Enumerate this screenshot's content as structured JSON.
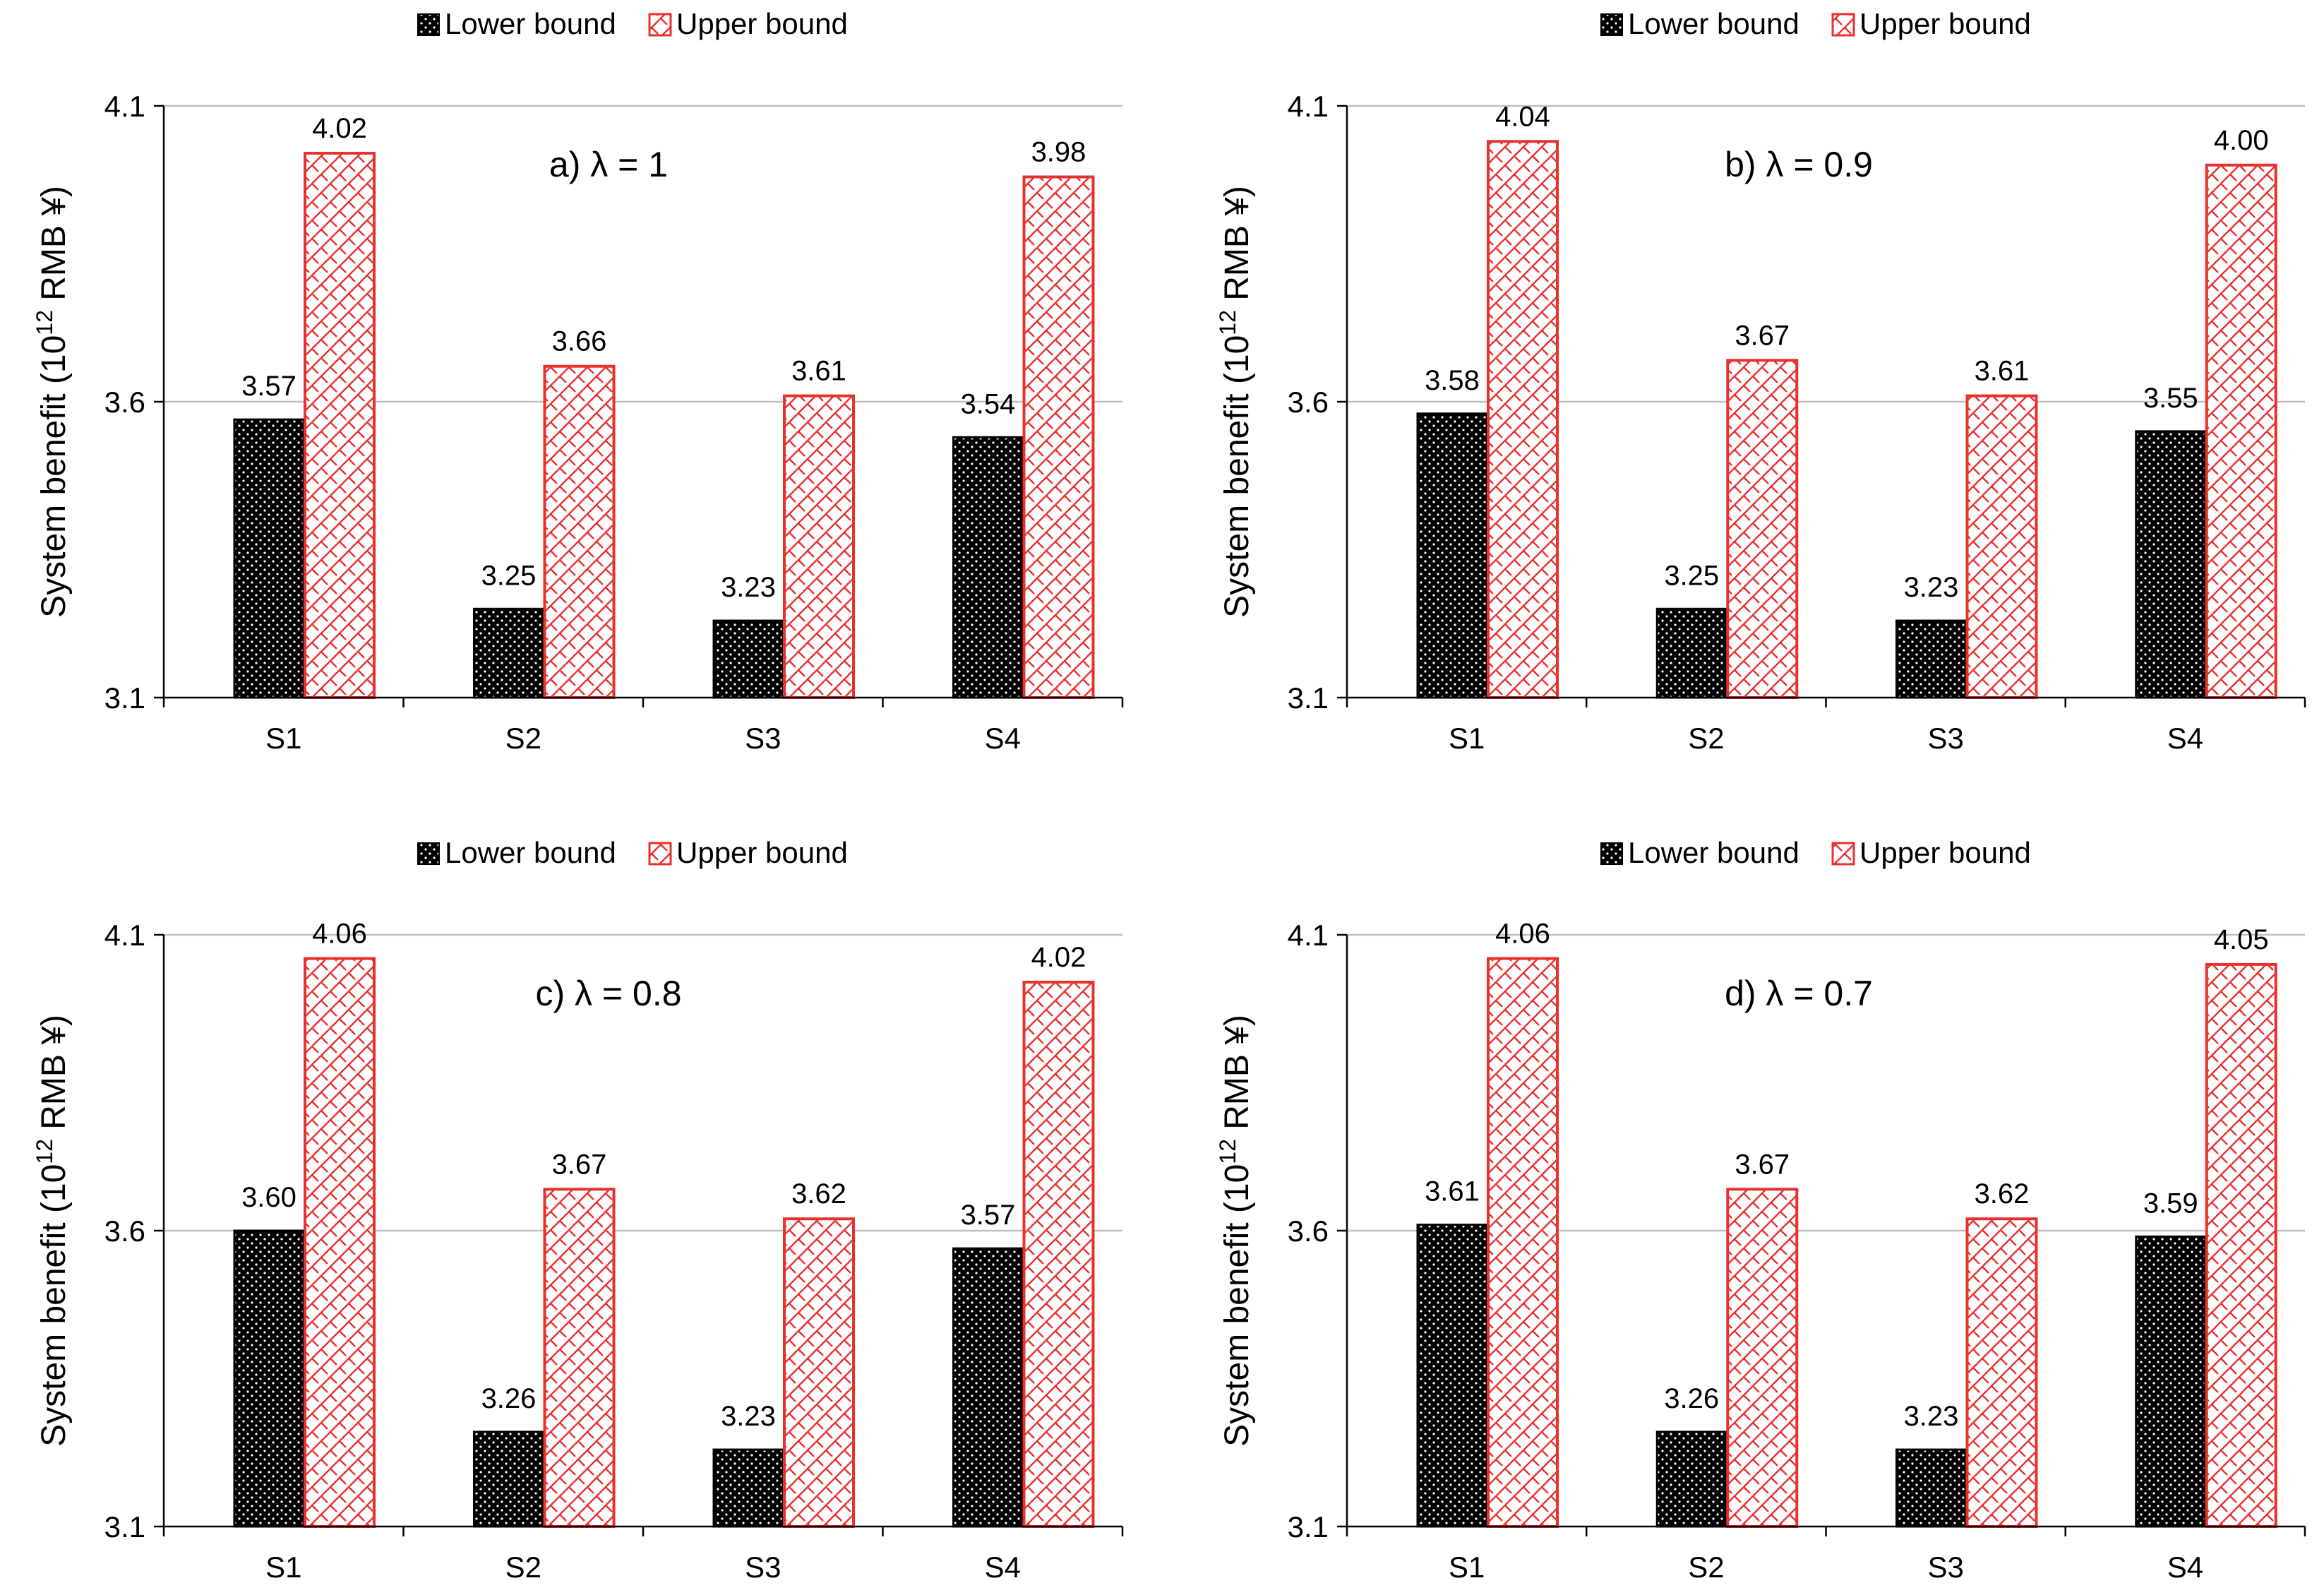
{
  "colors": {
    "lower_fill": "#000000",
    "lower_dots": "#ffffff",
    "upper_stroke": "#e8312f",
    "upper_fill": "#ffffff",
    "gridline": "#bfbfbf",
    "axis": "#000000"
  },
  "chart_data": [
    {
      "type": "bar",
      "title": "a) λ = 1",
      "categories": [
        "S1",
        "S2",
        "S3",
        "S4"
      ],
      "series": [
        {
          "name": "Lower bound",
          "values": [
            3.57,
            3.25,
            3.23,
            3.54
          ],
          "labels": [
            "3.57",
            "3.25",
            "3.23",
            "3.54"
          ]
        },
        {
          "name": "Upper bound",
          "values": [
            4.02,
            3.66,
            3.61,
            3.98
          ],
          "labels": [
            "4.02",
            "3.66",
            "3.61",
            "3.98"
          ]
        }
      ],
      "ylabel": "System benefit (10¹² RMB ¥)",
      "ylabel_parts": [
        "System benefit (10",
        "12",
        " RMB ¥)"
      ],
      "xlabel": "",
      "ylim": [
        3.1,
        4.1
      ],
      "yticks": [
        3.1,
        3.6,
        4.1
      ],
      "ytick_labels": [
        "3.1",
        "3.6",
        "4.1"
      ],
      "legend": [
        "Lower bound",
        "Upper bound"
      ],
      "legend_position": "top"
    },
    {
      "type": "bar",
      "title": "b) λ = 0.9",
      "categories": [
        "S1",
        "S2",
        "S3",
        "S4"
      ],
      "series": [
        {
          "name": "Lower bound",
          "values": [
            3.58,
            3.25,
            3.23,
            3.55
          ],
          "labels": [
            "3.58",
            "3.25",
            "3.23",
            "3.55"
          ]
        },
        {
          "name": "Upper bound",
          "values": [
            4.04,
            3.67,
            3.61,
            4.0
          ],
          "labels": [
            "4.04",
            "3.67",
            "3.61",
            "4.00"
          ]
        }
      ],
      "ylabel": "System benefit (10¹² RMB ¥)",
      "ylabel_parts": [
        "System benefit (10",
        "12",
        " RMB ¥)"
      ],
      "xlabel": "",
      "ylim": [
        3.1,
        4.1
      ],
      "yticks": [
        3.1,
        3.6,
        4.1
      ],
      "ytick_labels": [
        "3.1",
        "3.6",
        "4.1"
      ],
      "legend": [
        "Lower bound",
        "Upper bound"
      ],
      "legend_position": "top"
    },
    {
      "type": "bar",
      "title": "c) λ = 0.8",
      "categories": [
        "S1",
        "S2",
        "S3",
        "S4"
      ],
      "series": [
        {
          "name": "Lower bound",
          "values": [
            3.6,
            3.26,
            3.23,
            3.57
          ],
          "labels": [
            "3.60",
            "3.26",
            "3.23",
            "3.57"
          ]
        },
        {
          "name": "Upper bound",
          "values": [
            4.06,
            3.67,
            3.62,
            4.02
          ],
          "labels": [
            "4.06",
            "3.67",
            "3.62",
            "4.02"
          ]
        }
      ],
      "ylabel": "System benefit (10¹² RMB ¥)",
      "ylabel_parts": [
        "System benefit (10",
        "12",
        " RMB ¥)"
      ],
      "xlabel": "",
      "ylim": [
        3.1,
        4.1
      ],
      "yticks": [
        3.1,
        3.6,
        4.1
      ],
      "ytick_labels": [
        "3.1",
        "3.6",
        "4.1"
      ],
      "legend": [
        "Lower bound",
        "Upper bound"
      ],
      "legend_position": "top"
    },
    {
      "type": "bar",
      "title": "d) λ = 0.7",
      "categories": [
        "S1",
        "S2",
        "S3",
        "S4"
      ],
      "series": [
        {
          "name": "Lower bound",
          "values": [
            3.61,
            3.26,
            3.23,
            3.59
          ],
          "labels": [
            "3.61",
            "3.26",
            "3.23",
            "3.59"
          ]
        },
        {
          "name": "Upper bound",
          "values": [
            4.06,
            3.67,
            3.62,
            4.05
          ],
          "labels": [
            "4.06",
            "3.67",
            "3.62",
            "4.05"
          ]
        }
      ],
      "ylabel": "System benefit (10¹² RMB ¥)",
      "ylabel_parts": [
        "System benefit (10",
        "12",
        " RMB ¥)"
      ],
      "xlabel": "",
      "ylim": [
        3.1,
        4.1
      ],
      "yticks": [
        3.1,
        3.6,
        4.1
      ],
      "ytick_labels": [
        "3.1",
        "3.6",
        "4.1"
      ],
      "legend": [
        "Lower bound",
        "Upper bound"
      ],
      "legend_position": "top"
    }
  ]
}
